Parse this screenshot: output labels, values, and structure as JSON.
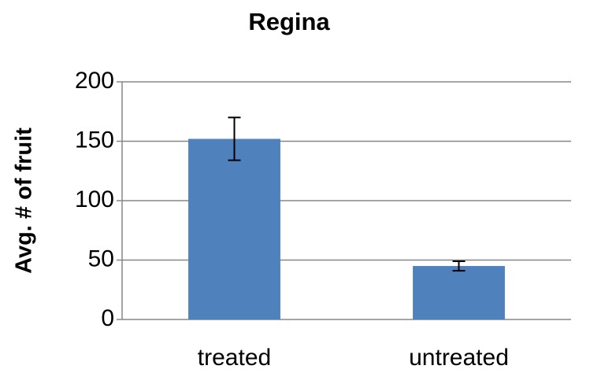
{
  "chart_data": {
    "type": "bar",
    "title": "Regina",
    "y_label": "Avg. # of fruit",
    "categories": [
      "treated",
      "untreated"
    ],
    "values": [
      152,
      45
    ],
    "errors": [
      18,
      4
    ],
    "color": "#4f81bd",
    "ylim": [
      0,
      200
    ],
    "yticks": [
      0,
      50,
      100,
      150,
      200
    ],
    "grid": true
  }
}
